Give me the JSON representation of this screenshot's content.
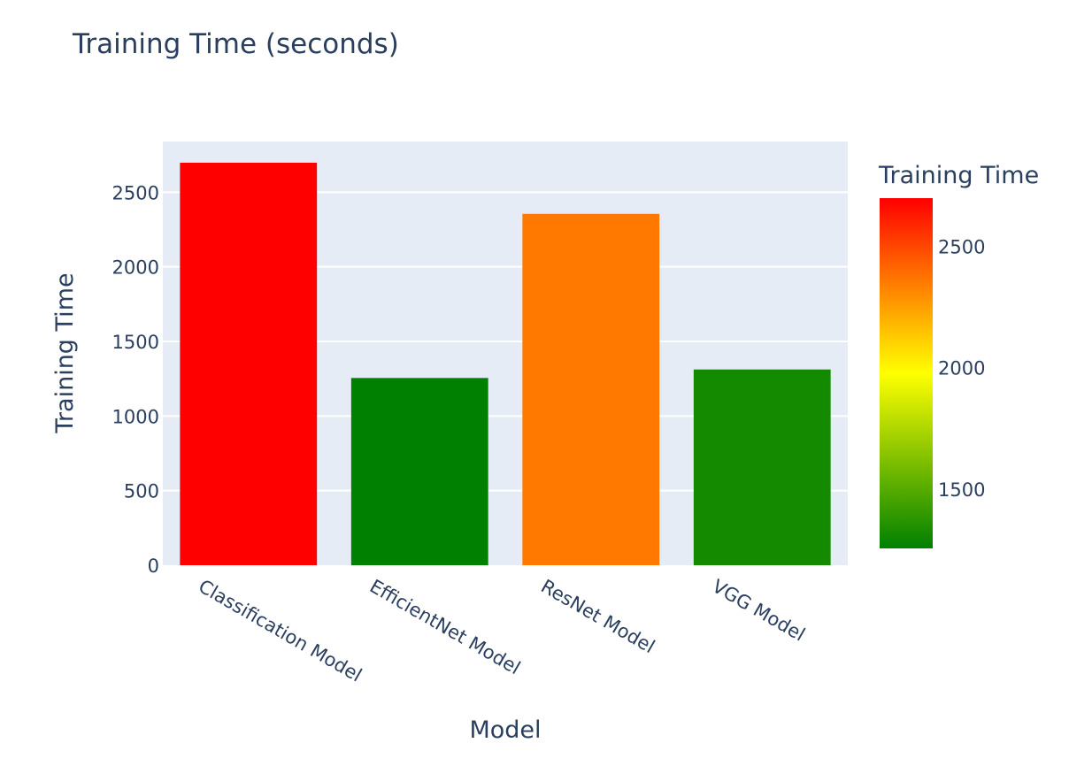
{
  "chart_data": {
    "type": "bar",
    "title": "Training Time (seconds)",
    "xlabel": "Model",
    "ylabel": "Training Time",
    "categories": [
      "Classification Model",
      "EfficientNet Model",
      "ResNet Model",
      "VGG Model"
    ],
    "values": [
      2698,
      1255,
      2355,
      1312
    ],
    "ylim": [
      0,
      2840
    ],
    "yticks": [
      0,
      500,
      1000,
      1500,
      2000,
      2500
    ],
    "grid": true,
    "colorbar": {
      "title": "Training Time",
      "range": [
        1255,
        2698
      ],
      "ticks": [
        1500,
        2000,
        2500
      ],
      "colorscale": [
        "#008000",
        "#ffff00",
        "#ff0000"
      ]
    },
    "plot_bg": "#e5ecf6",
    "text_color": "#2a3f5f"
  }
}
